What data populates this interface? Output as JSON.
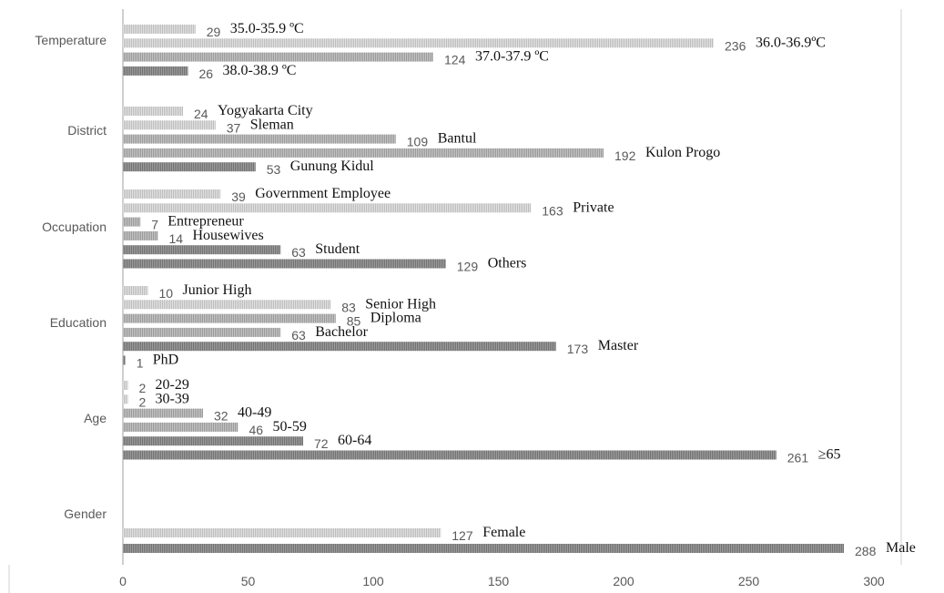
{
  "chart_data": {
    "type": "bar",
    "orientation": "horizontal",
    "xlim": [
      0,
      300
    ],
    "x_ticks": [
      "0",
      "50",
      "100",
      "150",
      "200",
      "250",
      "300"
    ],
    "grid": false,
    "legend": "none",
    "colors": {
      "bar_light": "#d0d0d0",
      "bar_mid": "#b5b5b5",
      "bar_dark": "#8a8a8a",
      "axis": "#c8c8c8"
    },
    "groups": [
      {
        "name": "Temperature",
        "bars": [
          {
            "label": "35.0-35.9 ºC",
            "value": 29
          },
          {
            "label": "36.0-36.9ºC",
            "value": 236
          },
          {
            "label": "37.0-37.9 ºC",
            "value": 124
          },
          {
            "label": "38.0-38.9 ºC",
            "value": 26
          }
        ]
      },
      {
        "name": "District",
        "bars": [
          {
            "label": "Yogyakarta City",
            "value": 24
          },
          {
            "label": "Sleman",
            "value": 37
          },
          {
            "label": "Bantul",
            "value": 109
          },
          {
            "label": "Kulon Progo",
            "value": 192
          },
          {
            "label": "Gunung Kidul",
            "value": 53
          }
        ]
      },
      {
        "name": "Occupation",
        "bars": [
          {
            "label": "Government Employee",
            "value": 39
          },
          {
            "label": "Private",
            "value": 163
          },
          {
            "label": "Entrepreneur",
            "value": 7
          },
          {
            "label": "Housewives",
            "value": 14
          },
          {
            "label": "Student",
            "value": 63
          },
          {
            "label": "Others",
            "value": 129
          }
        ]
      },
      {
        "name": "Education",
        "bars": [
          {
            "label": "Junior High",
            "value": 10
          },
          {
            "label": "Senior High",
            "value": 83
          },
          {
            "label": "Diploma",
            "value": 85
          },
          {
            "label": "Bachelor",
            "value": 63
          },
          {
            "label": "Master",
            "value": 173
          },
          {
            "label": "PhD",
            "value": 1
          }
        ]
      },
      {
        "name": "Age",
        "bars": [
          {
            "label": "20-29",
            "value": 2
          },
          {
            "label": "30-39",
            "value": 2
          },
          {
            "label": "40-49",
            "value": 32
          },
          {
            "label": "50-59",
            "value": 46
          },
          {
            "label": "60-64",
            "value": 72
          },
          {
            "label": "≥65",
            "value": 261
          }
        ]
      },
      {
        "name": "Gender",
        "bars": [
          {
            "label": "Female",
            "value": 127
          },
          {
            "label": "Male",
            "value": 288
          }
        ]
      }
    ]
  }
}
